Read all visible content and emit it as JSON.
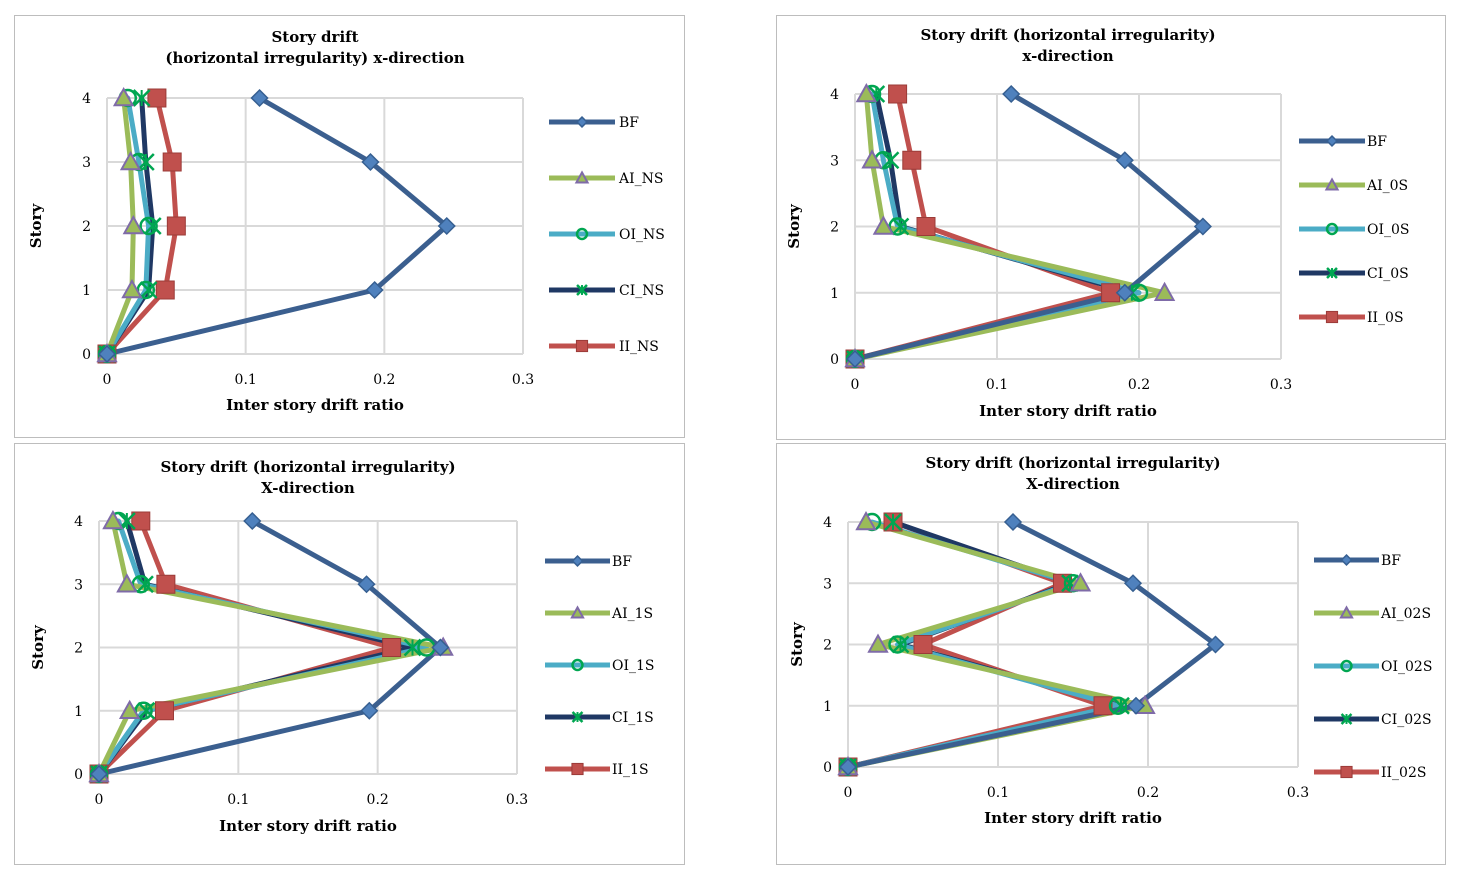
{
  "chart_data": [
    {
      "type": "line",
      "title_lines": [
        "Story drift",
        "(horizontal irregularity) x-direction"
      ],
      "xlabel": "Inter story drift ratio",
      "ylabel": "Story",
      "xlim": [
        0,
        0.3
      ],
      "ylim": [
        0,
        4
      ],
      "xticks": [
        "0",
        "0.1",
        "0.2",
        "0.3"
      ],
      "yticks": [
        "0",
        "1",
        "2",
        "3",
        "4"
      ],
      "grid": true,
      "legend_position": "right",
      "series": [
        {
          "name": "BF",
          "color": "#3B5F8F",
          "marker": "diamond",
          "x": [
            0,
            0.193,
            0.245,
            0.19,
            0.11
          ],
          "y": [
            0,
            1,
            2,
            3,
            4
          ]
        },
        {
          "name": "AI_NS",
          "color": "#9BBB59",
          "marker": "triangle",
          "x": [
            0,
            0.018,
            0.019,
            0.017,
            0.012
          ],
          "y": [
            0,
            1,
            2,
            3,
            4
          ]
        },
        {
          "name": "OI_NS",
          "color": "#4BACC6",
          "marker": "circle",
          "x": [
            0,
            0.028,
            0.03,
            0.023,
            0.015
          ],
          "y": [
            0,
            1,
            2,
            3,
            4
          ]
        },
        {
          "name": "CI_NS",
          "color": "#1F3864",
          "marker": "asterisk",
          "x": [
            0,
            0.03,
            0.033,
            0.028,
            0.025
          ],
          "y": [
            0,
            1,
            2,
            3,
            4
          ]
        },
        {
          "name": "II_NS",
          "color": "#C0504D",
          "marker": "square",
          "x": [
            0,
            0.042,
            0.05,
            0.047,
            0.036
          ],
          "y": [
            0,
            1,
            2,
            3,
            4
          ]
        }
      ]
    },
    {
      "type": "line",
      "title_lines": [
        "Story drift (horizontal irregularity)",
        "x-direction"
      ],
      "xlabel": "Inter story drift ratio",
      "ylabel": "Story",
      "xlim": [
        0,
        0.3
      ],
      "ylim": [
        0,
        4
      ],
      "xticks": [
        "0",
        "0.1",
        "0.2",
        "0.3"
      ],
      "yticks": [
        "0",
        "1",
        "2",
        "3",
        "4"
      ],
      "grid": true,
      "legend_position": "right",
      "series": [
        {
          "name": "BF",
          "color": "#3B5F8F",
          "marker": "diamond",
          "x": [
            0,
            0.19,
            0.245,
            0.19,
            0.11
          ],
          "y": [
            0,
            1,
            2,
            3,
            4
          ]
        },
        {
          "name": "AI_0S",
          "color": "#9BBB59",
          "marker": "triangle",
          "x": [
            0,
            0.218,
            0.02,
            0.012,
            0.008
          ],
          "y": [
            0,
            1,
            2,
            3,
            4
          ]
        },
        {
          "name": "OI_0S",
          "color": "#4BACC6",
          "marker": "circle",
          "x": [
            0,
            0.2,
            0.03,
            0.02,
            0.012
          ],
          "y": [
            0,
            1,
            2,
            3,
            4
          ]
        },
        {
          "name": "CI_0S",
          "color": "#1F3864",
          "marker": "asterisk",
          "x": [
            0,
            0.195,
            0.032,
            0.025,
            0.015
          ],
          "y": [
            0,
            1,
            2,
            3,
            4
          ]
        },
        {
          "name": "II_0S",
          "color": "#C0504D",
          "marker": "square",
          "x": [
            0,
            0.18,
            0.05,
            0.04,
            0.03
          ],
          "y": [
            0,
            1,
            2,
            3,
            4
          ]
        }
      ]
    },
    {
      "type": "line",
      "title_lines": [
        "Story drift (horizontal irregularity)",
        "X-direction"
      ],
      "xlabel": "Inter story drift ratio",
      "ylabel": "Story",
      "xlim": [
        0,
        0.3
      ],
      "ylim": [
        0,
        4
      ],
      "xticks": [
        "0",
        "0.1",
        "0.2",
        "0.3"
      ],
      "yticks": [
        "0",
        "1",
        "2",
        "3",
        "4"
      ],
      "grid": true,
      "legend_position": "right",
      "series": [
        {
          "name": "BF",
          "color": "#3B5F8F",
          "marker": "diamond",
          "x": [
            0,
            0.194,
            0.245,
            0.192,
            0.11
          ],
          "y": [
            0,
            1,
            2,
            3,
            4
          ]
        },
        {
          "name": "AI_1S",
          "color": "#9BBB59",
          "marker": "triangle",
          "x": [
            0,
            0.022,
            0.247,
            0.02,
            0.01
          ],
          "y": [
            0,
            1,
            2,
            3,
            4
          ]
        },
        {
          "name": "OI_1S",
          "color": "#4BACC6",
          "marker": "circle",
          "x": [
            0,
            0.032,
            0.235,
            0.03,
            0.014
          ],
          "y": [
            0,
            1,
            2,
            3,
            4
          ]
        },
        {
          "name": "CI_1S",
          "color": "#1F3864",
          "marker": "asterisk",
          "x": [
            0,
            0.034,
            0.225,
            0.033,
            0.02
          ],
          "y": [
            0,
            1,
            2,
            3,
            4
          ]
        },
        {
          "name": "II_1S",
          "color": "#C0504D",
          "marker": "square",
          "x": [
            0,
            0.047,
            0.21,
            0.048,
            0.03
          ],
          "y": [
            0,
            1,
            2,
            3,
            4
          ]
        }
      ]
    },
    {
      "type": "line",
      "title_lines": [
        "Story drift (horizontal irregularity)",
        "X-direction"
      ],
      "xlabel": "Inter story drift ratio",
      "ylabel": "Story",
      "xlim": [
        0,
        0.3
      ],
      "ylim": [
        0,
        4
      ],
      "xticks": [
        "0",
        "0.1",
        "0.2",
        "0.3"
      ],
      "yticks": [
        "0",
        "1",
        "2",
        "3",
        "4"
      ],
      "grid": true,
      "legend_position": "right",
      "series": [
        {
          "name": "BF",
          "color": "#3B5F8F",
          "marker": "diamond",
          "x": [
            0,
            0.192,
            0.245,
            0.19,
            0.11
          ],
          "y": [
            0,
            1,
            2,
            3,
            4
          ]
        },
        {
          "name": "AI_02S",
          "color": "#9BBB59",
          "marker": "triangle",
          "x": [
            0,
            0.198,
            0.02,
            0.155,
            0.012
          ],
          "y": [
            0,
            1,
            2,
            3,
            4
          ]
        },
        {
          "name": "OI_02S",
          "color": "#4BACC6",
          "marker": "circle",
          "x": [
            0,
            0.18,
            0.033,
            0.15,
            0.016
          ],
          "y": [
            0,
            1,
            2,
            3,
            4
          ]
        },
        {
          "name": "CI_02S",
          "color": "#1F3864",
          "marker": "asterisk",
          "x": [
            0,
            0.182,
            0.035,
            0.148,
            0.03
          ],
          "y": [
            0,
            1,
            2,
            3,
            4
          ]
        },
        {
          "name": "II_02S",
          "color": "#C0504D",
          "marker": "square",
          "x": [
            0,
            0.17,
            0.05,
            0.143,
            0.03
          ],
          "y": [
            0,
            1,
            2,
            3,
            4
          ]
        }
      ]
    }
  ]
}
